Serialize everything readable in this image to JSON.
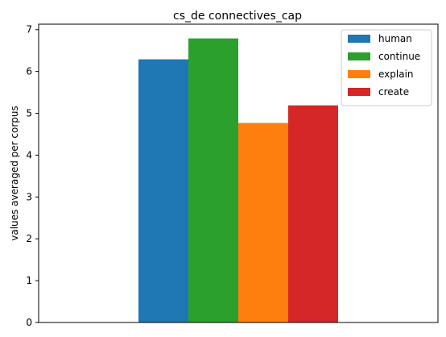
{
  "chart_data": {
    "type": "bar",
    "title": "cs_de connectives_cap",
    "xlabel": "",
    "ylabel": "values averaged per corpus",
    "ylim": [
      0,
      7.13
    ],
    "yticks": [
      0,
      1,
      2,
      3,
      4,
      5,
      6,
      7
    ],
    "grid": false,
    "legend_position": "top-right",
    "series": [
      {
        "name": "human",
        "value": 6.29,
        "color": "#1f77b4"
      },
      {
        "name": "continue",
        "value": 6.79,
        "color": "#2ca02c"
      },
      {
        "name": "explain",
        "value": 4.77,
        "color": "#ff7f0e"
      },
      {
        "name": "create",
        "value": 5.19,
        "color": "#d62728"
      }
    ]
  }
}
